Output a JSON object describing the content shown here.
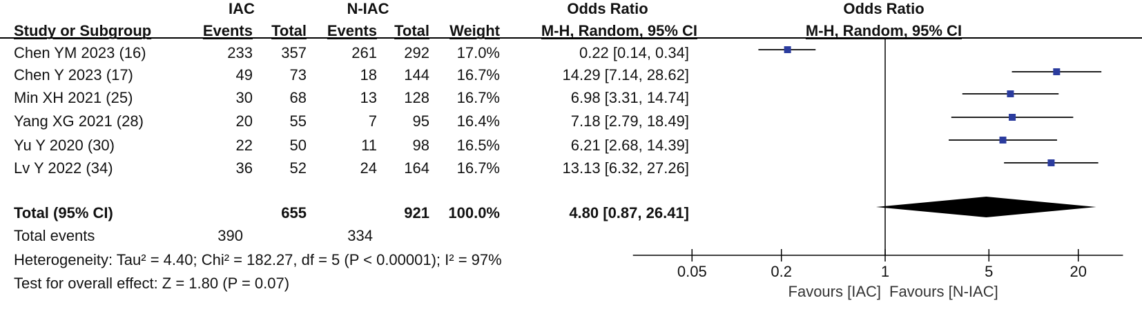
{
  "header": {
    "iac_group": "IAC",
    "niac_group": "N-IAC",
    "or_group": "Odds Ratio",
    "plot_group": "Odds Ratio",
    "study_col": "Study or Subgroup",
    "events1_col": "Events",
    "total1_col": "Total",
    "events2_col": "Events",
    "total2_col": "Total",
    "weight_col": "Weight",
    "or_col": "M-H, Random, 95% CI",
    "plot_col": "M-H, Random, 95% CI"
  },
  "studies": [
    {
      "name": "Chen YM 2023 (16)",
      "e1": "233",
      "t1": "357",
      "e2": "261",
      "t2": "292",
      "weight": "17.0%",
      "ci_text": "0.22 [0.14, 0.34]"
    },
    {
      "name": "Chen Y 2023 (17)",
      "e1": "49",
      "t1": "73",
      "e2": "18",
      "t2": "144",
      "weight": "16.7%",
      "ci_text": "14.29 [7.14, 28.62]"
    },
    {
      "name": "Min XH 2021 (25)",
      "e1": "30",
      "t1": "68",
      "e2": "13",
      "t2": "128",
      "weight": "16.7%",
      "ci_text": "6.98 [3.31, 14.74]"
    },
    {
      "name": "Yang XG 2021 (28)",
      "e1": "20",
      "t1": "55",
      "e2": "7",
      "t2": "95",
      "weight": "16.4%",
      "ci_text": "7.18 [2.79, 18.49]"
    },
    {
      "name": "Yu Y 2020 (30)",
      "e1": "22",
      "t1": "50",
      "e2": "11",
      "t2": "98",
      "weight": "16.5%",
      "ci_text": "6.21 [2.68, 14.39]"
    },
    {
      "name": "Lv Y 2022 (34)",
      "e1": "36",
      "t1": "52",
      "e2": "24",
      "t2": "164",
      "weight": "16.7%",
      "ci_text": "13.13 [6.32, 27.26]"
    }
  ],
  "total": {
    "label": "Total (95% CI)",
    "t1": "655",
    "t2": "921",
    "weight": "100.0%",
    "ci_text": "4.80 [0.87, 26.41]"
  },
  "total_events": {
    "label": "Total events",
    "e1": "390",
    "e2": "334"
  },
  "heterogeneity": "Heterogeneity: Tau² = 4.40; Chi² = 182.27, df = 5 (P < 0.00001); I² = 97%",
  "overall_effect": "Test for overall effect: Z = 1.80 (P = 0.07)",
  "colors": {
    "marker": "#2b3c9e",
    "line": "#000000",
    "diamond": "#000000"
  },
  "chart_data": {
    "type": "forest",
    "scale": "log",
    "xlim": [
      0.02,
      40
    ],
    "null_value": 1,
    "ticks": [
      0.05,
      0.2,
      1,
      5,
      20
    ],
    "tick_labels": [
      "0.05",
      "0.2",
      "1",
      "5",
      "20"
    ],
    "favours_left": "Favours [IAC]",
    "favours_right": "Favours [N-IAC]",
    "points": [
      {
        "or": 0.22,
        "lo": 0.14,
        "hi": 0.34
      },
      {
        "or": 14.29,
        "lo": 7.14,
        "hi": 28.62
      },
      {
        "or": 6.98,
        "lo": 3.31,
        "hi": 14.74
      },
      {
        "or": 7.18,
        "lo": 2.79,
        "hi": 18.49
      },
      {
        "or": 6.21,
        "lo": 2.68,
        "hi": 14.39
      },
      {
        "or": 13.13,
        "lo": 6.32,
        "hi": 27.26
      }
    ],
    "pooled": {
      "or": 4.8,
      "lo": 0.87,
      "hi": 26.41
    }
  }
}
